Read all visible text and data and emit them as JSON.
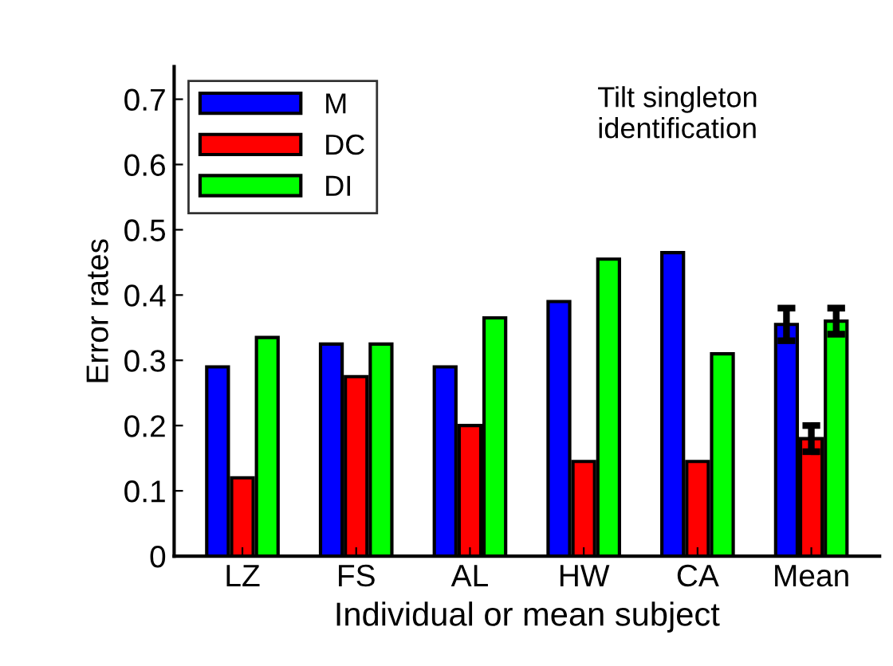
{
  "chart_data": {
    "type": "bar",
    "xlabel": "Individual or mean subject",
    "ylabel": "Error rates",
    "categories": [
      "LZ",
      "FS",
      "AL",
      "HW",
      "CA",
      "Mean"
    ],
    "series": [
      {
        "name": "M",
        "color": "#0000ff",
        "values": [
          0.29,
          0.325,
          0.29,
          0.39,
          0.465,
          0.355
        ],
        "errors": [
          null,
          null,
          null,
          null,
          null,
          0.025
        ]
      },
      {
        "name": "DC",
        "color": "#ff0000",
        "values": [
          0.12,
          0.275,
          0.2,
          0.145,
          0.145,
          0.18
        ],
        "errors": [
          null,
          null,
          null,
          null,
          null,
          0.02
        ]
      },
      {
        "name": "DI",
        "color": "#00ff00",
        "values": [
          0.335,
          0.325,
          0.365,
          0.455,
          0.31,
          0.36
        ],
        "errors": [
          null,
          null,
          null,
          null,
          null,
          0.02
        ]
      }
    ],
    "ylim": [
      0,
      0.75
    ],
    "yticks": [
      0,
      0.1,
      0.2,
      0.3,
      0.4,
      0.5,
      0.6,
      0.7
    ],
    "annotations": [
      "Tilt singleton\nidentification"
    ],
    "legend": "top left",
    "grid": false
  }
}
